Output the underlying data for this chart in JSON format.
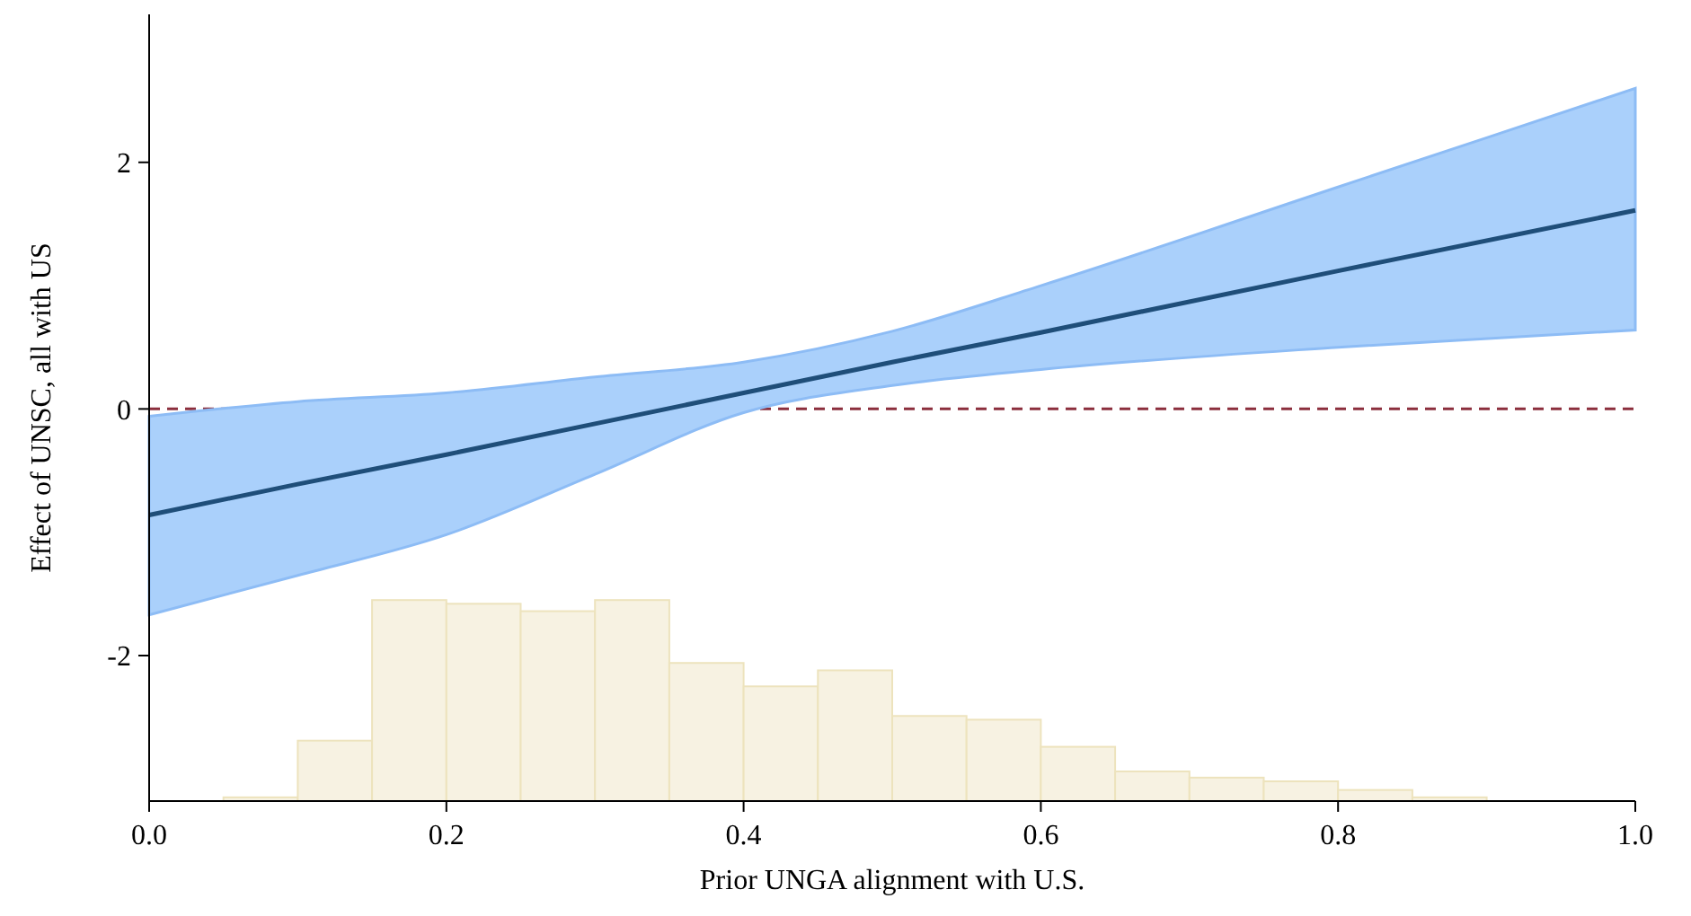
{
  "chart_data": {
    "type": "line",
    "xlabel": "Prior UNGA alignment with U.S.",
    "ylabel": "Effect of UNSC, all with US",
    "xlim": [
      0,
      1
    ],
    "xticks": [
      {
        "value": 0,
        "label": "0.0"
      },
      {
        "value": 0.2,
        "label": "0.2"
      },
      {
        "value": 0.4,
        "label": "0.4"
      },
      {
        "value": 0.6,
        "label": "0.6"
      },
      {
        "value": 0.8,
        "label": "0.8"
      },
      {
        "value": 1,
        "label": "1.0"
      }
    ],
    "ylim": [
      -3.18,
      3.2
    ],
    "yticks": [
      -2,
      0,
      2
    ],
    "series": [
      {
        "type": "bar",
        "color": "#f7f2e2",
        "x": [
          0.075,
          0.125,
          0.175,
          0.225,
          0.275,
          0.325,
          0.375,
          0.425,
          0.475,
          0.525,
          0.575,
          0.625,
          0.675,
          0.725,
          0.775,
          0.825,
          0.875
        ],
        "base": [
          -3.18,
          -3.18,
          -3.18,
          -3.18,
          -3.18,
          -3.18,
          -3.18,
          -3.18,
          -3.18,
          -3.18,
          -3.18,
          -3.18,
          -3.18,
          -3.18,
          -3.18,
          -3.18,
          -3.18
        ],
        "values": [
          0.03,
          0.49,
          1.63,
          1.6,
          1.54,
          1.63,
          1.12,
          0.93,
          1.06,
          0.69,
          0.66,
          0.44,
          0.24,
          0.19,
          0.16,
          0.09,
          0.03
        ]
      },
      {
        "color": "#1f4e79",
        "x": [
          0,
          0.1,
          0.2,
          0.3,
          0.4,
          0.5,
          0.6,
          0.8,
          1
        ],
        "values": [
          -0.86,
          -0.61,
          -0.37,
          -0.12,
          0.13,
          0.38,
          0.62,
          1.12,
          1.61
        ],
        "lower": [
          -1.67,
          -1.35,
          -1.02,
          -0.53,
          -0.03,
          0.19,
          0.32,
          0.5,
          0.64
        ],
        "upper": [
          -0.06,
          0.06,
          0.13,
          0.26,
          0.38,
          0.63,
          1.0,
          1.8,
          2.6
        ]
      }
    ],
    "ref_lines": [
      {
        "axis": "y",
        "value": 0,
        "color": "#8b2e3c",
        "line_style": "dashed"
      }
    ],
    "grid": false
  }
}
